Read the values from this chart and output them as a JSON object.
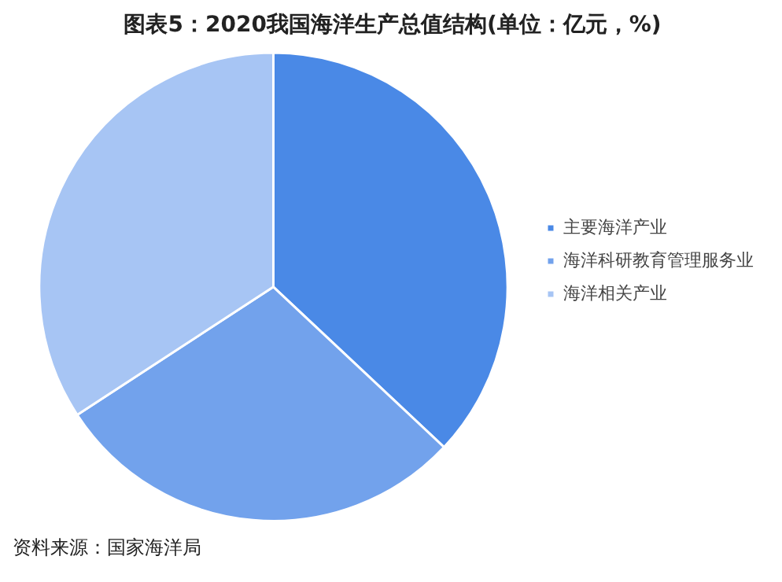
{
  "chart_data": {
    "type": "pie",
    "title": "图表5：2020我国海洋生产总值结构(单位：亿元，%)",
    "categories": [
      "主要海洋产业",
      "海洋科研教育管理服务业",
      "海洋相关产业"
    ],
    "values": [
      37.0,
      28.8,
      34.2
    ],
    "colors": [
      "#4a89e6",
      "#72a2ec",
      "#a7c5f4"
    ],
    "legend": "right",
    "annotations": [
      "资料来源：国家海洋局"
    ]
  }
}
